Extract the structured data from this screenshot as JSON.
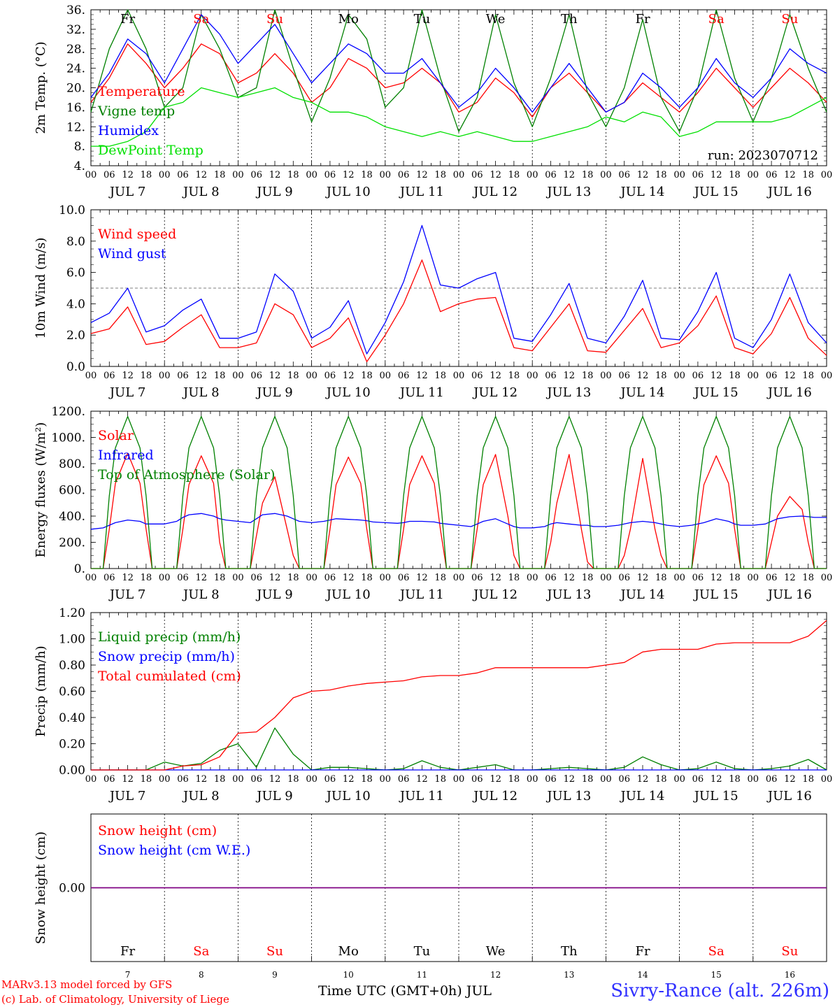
{
  "footer": {
    "model": "MARv3.13 model forced by GFS",
    "lab": "(c) Lab. of Climatology, University of Liege",
    "time_label": "Time UTC (GMT+0h) JUL",
    "station": "Sivry-Rance (alt. 226m)"
  },
  "days": {
    "weekdays": [
      "Fr",
      "Sa",
      "Su",
      "Mo",
      "Tu",
      "We",
      "Th",
      "Fr",
      "Sa",
      "Su"
    ],
    "weekend_flags": [
      false,
      true,
      true,
      false,
      false,
      false,
      false,
      false,
      true,
      true
    ],
    "dates": [
      "JUL  7",
      "JUL  8",
      "JUL  9",
      "JUL 10",
      "JUL 11",
      "JUL 12",
      "JUL 13",
      "JUL 14",
      "JUL 15",
      "JUL 16"
    ],
    "day_numbers": [
      "7",
      "8",
      "9",
      "10",
      "11",
      "12",
      "13",
      "14",
      "15",
      "16"
    ],
    "hour_ticks": [
      "00",
      "06",
      "12",
      "18"
    ],
    "end_tick": "00"
  },
  "colors": {
    "red": "#ff0000",
    "blue": "#0000ff",
    "green": "#008000",
    "lightgreen": "#00e000",
    "purple": "#800080",
    "weekend": "#ff0000"
  },
  "chart_data": [
    {
      "type": "line",
      "ylabel": "2m Temp. (°C)",
      "ylim": [
        4,
        36
      ],
      "yticks": [
        "4.",
        "8.",
        "12.",
        "16.",
        "20.",
        "24.",
        "28.",
        "32.",
        "36."
      ],
      "run_label": "run: 2023070712",
      "show_weekdays": true,
      "x_days": [
        0,
        0.25,
        0.5,
        0.75,
        1,
        1.25,
        1.5,
        1.75,
        2,
        2.25,
        2.5,
        2.75,
        3,
        3.25,
        3.5,
        3.75,
        4,
        4.25,
        4.5,
        4.75,
        5,
        5.25,
        5.5,
        5.75,
        6,
        6.25,
        6.5,
        6.75,
        7,
        7.25,
        7.5,
        7.75,
        8,
        8.25,
        8.5,
        8.75,
        9,
        9.25,
        9.5,
        9.75,
        10
      ],
      "series": [
        {
          "name": "Temperature",
          "color": "#ff0000",
          "values": [
            17,
            22,
            29,
            25,
            20,
            24,
            29,
            27,
            21,
            23,
            27,
            23,
            17,
            20,
            26,
            24,
            20,
            21,
            24,
            21,
            15,
            17,
            22,
            19,
            14,
            20,
            23,
            19,
            15,
            17,
            21,
            18,
            15,
            19,
            24,
            20,
            16,
            20,
            24,
            21,
            17
          ]
        },
        {
          "name": "Vigne temp",
          "color": "#008000",
          "values": [
            15,
            28,
            36,
            28,
            16,
            20,
            35,
            28,
            18,
            20,
            36,
            24,
            13,
            22,
            35,
            30,
            16,
            20,
            36,
            22,
            11,
            18,
            35,
            21,
            12,
            22,
            35,
            19,
            12,
            20,
            34,
            18,
            11,
            20,
            36,
            22,
            13,
            22,
            35,
            24,
            15
          ]
        },
        {
          "name": "Humidex",
          "color": "#0000ff",
          "values": [
            18,
            23,
            30,
            27,
            21,
            28,
            35,
            31,
            25,
            29,
            33,
            27,
            21,
            25,
            29,
            27,
            23,
            23,
            26,
            21,
            16,
            19,
            24,
            20,
            15,
            20,
            25,
            20,
            15,
            17,
            23,
            20,
            16,
            20,
            26,
            21,
            18,
            22,
            28,
            25,
            23
          ]
        },
        {
          "name": "DewPoint Temp",
          "color": "#00e000",
          "values": [
            8,
            8,
            9,
            11,
            16,
            17,
            20,
            19,
            18,
            19,
            20,
            18,
            17,
            15,
            15,
            14,
            12,
            11,
            10,
            11,
            10,
            11,
            10,
            9,
            9,
            10,
            11,
            12,
            14,
            13,
            15,
            14,
            10,
            11,
            13,
            13,
            13,
            13,
            14,
            16,
            18
          ]
        }
      ]
    },
    {
      "type": "line",
      "ylabel": "10m Wind (m/s)",
      "ylim": [
        0,
        10
      ],
      "yticks": [
        "0.0",
        "2.0",
        "4.0",
        "6.0",
        "8.0",
        "10.0"
      ],
      "ref_line": 5,
      "show_weekdays": false,
      "x_days": [
        0,
        0.25,
        0.5,
        0.75,
        1,
        1.25,
        1.5,
        1.75,
        2,
        2.25,
        2.5,
        2.75,
        3,
        3.25,
        3.5,
        3.75,
        4,
        4.25,
        4.5,
        4.75,
        5,
        5.25,
        5.5,
        5.75,
        6,
        6.25,
        6.5,
        6.75,
        7,
        7.25,
        7.5,
        7.75,
        8,
        8.25,
        8.5,
        8.75,
        9,
        9.25,
        9.5,
        9.75,
        10
      ],
      "series": [
        {
          "name": "Wind speed",
          "color": "#ff0000",
          "values": [
            2.1,
            2.4,
            3.8,
            1.4,
            1.6,
            2.5,
            3.3,
            1.2,
            1.2,
            1.5,
            4.0,
            3.3,
            1.2,
            1.8,
            3.1,
            0.3,
            2.0,
            4.0,
            6.8,
            3.5,
            4.0,
            4.3,
            4.4,
            1.2,
            1.0,
            2.5,
            4.0,
            1.0,
            0.9,
            2.3,
            3.7,
            1.2,
            1.5,
            2.6,
            4.5,
            1.2,
            0.8,
            2.1,
            4.4,
            1.8,
            0.7
          ]
        },
        {
          "name": "Wind gust",
          "color": "#0000ff",
          "values": [
            2.8,
            3.4,
            5.0,
            2.2,
            2.6,
            3.6,
            4.3,
            1.8,
            1.8,
            2.2,
            5.9,
            4.8,
            1.8,
            2.5,
            4.2,
            0.8,
            2.8,
            5.4,
            9.0,
            5.2,
            5.0,
            5.6,
            6.0,
            1.8,
            1.6,
            3.3,
            5.3,
            1.8,
            1.5,
            3.2,
            5.5,
            1.8,
            1.7,
            3.5,
            6.0,
            1.8,
            1.2,
            3.0,
            5.9,
            2.8,
            1.5
          ]
        }
      ]
    },
    {
      "type": "line",
      "ylabel": "Energy fluxes (W/m²)",
      "ylim": [
        0,
        1200
      ],
      "yticks": [
        "0.",
        "200.",
        "400.",
        "600.",
        "800.",
        "1000.",
        "1200."
      ],
      "show_weekdays": false,
      "x_days": [
        0,
        0.1667,
        0.25,
        0.333,
        0.5,
        0.667,
        0.75,
        0.833,
        1,
        1.1667,
        1.25,
        1.333,
        1.5,
        1.667,
        1.75,
        1.833,
        2,
        2.1667,
        2.25,
        2.333,
        2.5,
        2.667,
        2.75,
        2.833,
        3,
        3.1667,
        3.25,
        3.333,
        3.5,
        3.667,
        3.75,
        3.833,
        4,
        4.1667,
        4.25,
        4.333,
        4.5,
        4.667,
        4.75,
        4.833,
        5,
        5.1667,
        5.25,
        5.333,
        5.5,
        5.667,
        5.75,
        5.833,
        6,
        6.1667,
        6.25,
        6.333,
        6.5,
        6.667,
        6.75,
        6.833,
        7,
        7.1667,
        7.25,
        7.333,
        7.5,
        7.667,
        7.75,
        7.833,
        8,
        8.1667,
        8.25,
        8.333,
        8.5,
        8.667,
        8.75,
        8.833,
        9,
        9.1667,
        9.25,
        9.333,
        9.5,
        9.667,
        9.75,
        9.833,
        10
      ],
      "series": [
        {
          "name": "Solar",
          "color": "#ff0000",
          "values": [
            0,
            0,
            300,
            650,
            880,
            650,
            300,
            0,
            0,
            0,
            300,
            640,
            860,
            650,
            200,
            0,
            0,
            0,
            250,
            500,
            700,
            300,
            100,
            0,
            0,
            0,
            300,
            640,
            850,
            650,
            300,
            0,
            0,
            0,
            300,
            640,
            860,
            650,
            300,
            0,
            0,
            0,
            300,
            640,
            870,
            400,
            100,
            0,
            0,
            0,
            200,
            500,
            870,
            300,
            50,
            0,
            0,
            0,
            100,
            300,
            840,
            300,
            100,
            0,
            0,
            0,
            300,
            640,
            860,
            650,
            300,
            0,
            0,
            0,
            200,
            400,
            550,
            450,
            200,
            0,
            0
          ]
        },
        {
          "name": "Infrared",
          "color": "#0000ff",
          "values": [
            300,
            310,
            330,
            350,
            370,
            360,
            340,
            340,
            340,
            360,
            390,
            410,
            420,
            400,
            380,
            370,
            360,
            350,
            380,
            410,
            420,
            400,
            380,
            360,
            350,
            360,
            370,
            380,
            375,
            370,
            365,
            355,
            350,
            345,
            350,
            360,
            360,
            355,
            345,
            340,
            330,
            320,
            340,
            360,
            380,
            340,
            320,
            310,
            310,
            320,
            340,
            350,
            340,
            330,
            330,
            320,
            320,
            330,
            340,
            350,
            360,
            350,
            340,
            330,
            320,
            330,
            340,
            350,
            380,
            360,
            340,
            330,
            330,
            340,
            360,
            380,
            395,
            400,
            395,
            390,
            390
          ]
        },
        {
          "name": "Top of Atmosphere (Solar)",
          "color": "#008000",
          "values": [
            0,
            0,
            555,
            920,
            1160,
            920,
            555,
            0,
            0,
            0,
            555,
            920,
            1160,
            920,
            555,
            0,
            0,
            0,
            555,
            920,
            1160,
            920,
            555,
            0,
            0,
            0,
            555,
            920,
            1160,
            920,
            555,
            0,
            0,
            0,
            555,
            920,
            1160,
            920,
            555,
            0,
            0,
            0,
            555,
            920,
            1160,
            920,
            555,
            0,
            0,
            0,
            555,
            920,
            1160,
            920,
            555,
            0,
            0,
            0,
            555,
            920,
            1160,
            920,
            555,
            0,
            0,
            0,
            555,
            920,
            1160,
            920,
            555,
            0,
            0,
            0,
            555,
            920,
            1160,
            920,
            555,
            0,
            0
          ]
        }
      ]
    },
    {
      "type": "line",
      "ylabel": "Precip (mm/h)",
      "ylim": [
        0,
        1.2
      ],
      "yticks": [
        "0.00",
        "0.20",
        "0.40",
        "0.60",
        "0.80",
        "1.00",
        "1.20"
      ],
      "show_weekdays": false,
      "x_days": [
        0,
        0.25,
        0.5,
        0.75,
        1,
        1.25,
        1.5,
        1.75,
        2,
        2.25,
        2.5,
        2.75,
        3,
        3.25,
        3.5,
        3.75,
        4,
        4.25,
        4.5,
        4.75,
        5,
        5.25,
        5.5,
        5.75,
        6,
        6.25,
        6.5,
        6.75,
        7,
        7.25,
        7.5,
        7.75,
        8,
        8.25,
        8.5,
        8.75,
        9,
        9.25,
        9.5,
        9.75,
        10
      ],
      "series": [
        {
          "name": "Liquid precip (mm/h)",
          "color": "#008000",
          "values": [
            0,
            0,
            0,
            0,
            0.06,
            0.03,
            0.05,
            0.15,
            0.2,
            0.02,
            0.32,
            0.12,
            0,
            0.02,
            0.02,
            0.01,
            0,
            0.01,
            0.07,
            0.02,
            0,
            0.02,
            0.04,
            0,
            0,
            0.01,
            0.02,
            0.01,
            0,
            0.02,
            0.1,
            0.04,
            0,
            0.01,
            0.06,
            0.01,
            0,
            0.01,
            0.03,
            0.08,
            0
          ]
        },
        {
          "name": "Snow precip (mm/h)",
          "color": "#0000ff",
          "values": [
            0,
            0,
            0,
            0,
            0,
            0,
            0,
            0,
            0,
            0,
            0,
            0,
            0,
            0,
            0,
            0,
            0,
            0,
            0,
            0,
            0,
            0,
            0,
            0,
            0,
            0,
            0,
            0,
            0,
            0,
            0,
            0,
            0,
            0,
            0,
            0,
            0,
            0,
            0,
            0,
            0
          ]
        },
        {
          "name": "Total cumulated (cm)",
          "color": "#ff0000",
          "values": [
            0,
            0,
            0,
            0,
            0,
            0.03,
            0.04,
            0.1,
            0.28,
            0.29,
            0.4,
            0.55,
            0.6,
            0.61,
            0.64,
            0.66,
            0.67,
            0.68,
            0.71,
            0.72,
            0.72,
            0.74,
            0.78,
            0.78,
            0.78,
            0.78,
            0.78,
            0.78,
            0.8,
            0.82,
            0.9,
            0.92,
            0.92,
            0.92,
            0.96,
            0.97,
            0.97,
            0.97,
            0.97,
            1.02,
            1.14
          ]
        }
      ]
    },
    {
      "type": "line",
      "ylabel": "Snow height (cm)",
      "ylim": [
        -1,
        1
      ],
      "yticks": [
        "0.00"
      ],
      "ytick_values": [
        0
      ],
      "show_weekdays": true,
      "x_days": [
        0,
        10
      ],
      "series": [
        {
          "name": "Snow height (cm)",
          "color": "#ff0000",
          "values": [
            0,
            0
          ]
        },
        {
          "name": "Snow height (cm W.E.)",
          "color": "#0000ff",
          "values": [
            0,
            0
          ]
        }
      ]
    }
  ]
}
